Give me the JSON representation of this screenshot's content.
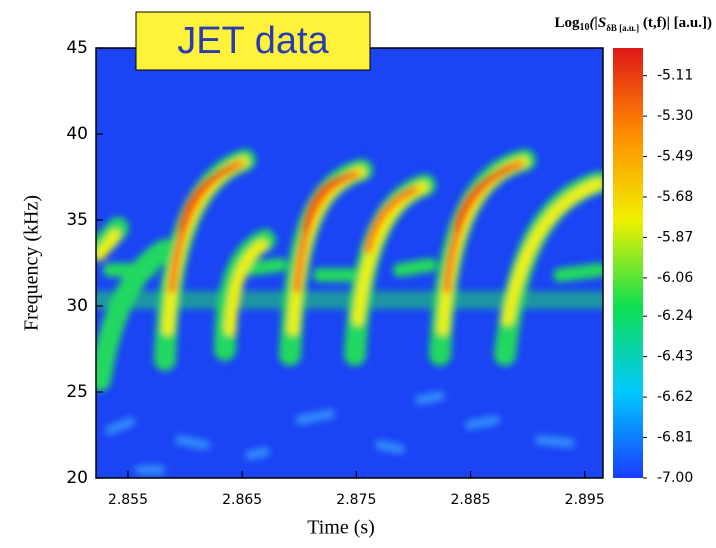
{
  "chart_data": {
    "type": "heatmap",
    "annotation": "JET data",
    "x_label": "Time (s)",
    "y_label": "Frequency (kHz)",
    "colorbar_label": [
      "Log",
      "10",
      "(|S",
      "δB [a.u.]",
      " (t,f)| [a.u.])"
    ],
    "xlim": [
      2.8522,
      2.8966
    ],
    "xticks": [
      2.855,
      2.865,
      2.875,
      2.885,
      2.895
    ],
    "ylim": [
      20,
      45
    ],
    "yticks": [
      20,
      25,
      30,
      35,
      40,
      45
    ],
    "clim": [
      -7.0,
      -4.98
    ],
    "cticks": [
      -5.11,
      {
        "value": -5.3,
        "label": "-5.30"
      },
      -5.49,
      -5.68,
      -5.87,
      -6.06,
      -6.24,
      -6.43,
      -6.62,
      -6.81,
      {
        "value": -7.0,
        "label": "-7.00"
      }
    ],
    "colormap": [
      "#1a3cff",
      "#00c8ff",
      "#10e050",
      "#f0f000",
      "#ff8c00",
      "#e01818"
    ]
  }
}
